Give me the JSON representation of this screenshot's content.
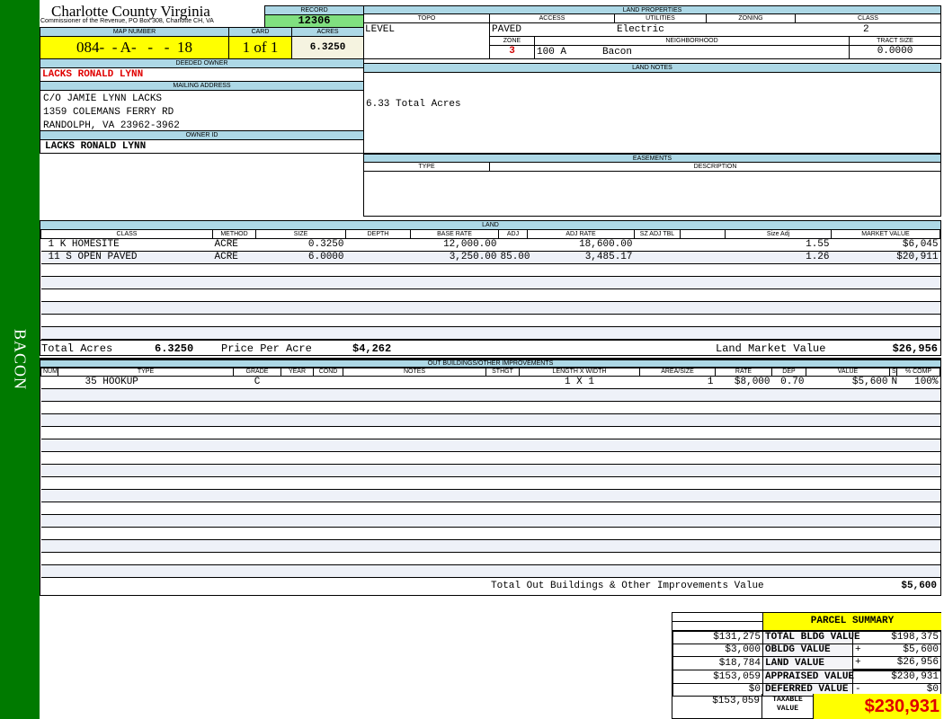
{
  "sidebar": {
    "label": "BACON",
    "color": "#007a00"
  },
  "header": {
    "title": "Charlotte County Virginia",
    "subtitle": "Commissioner of the Revenue, PO Box 308, Charlotte CH, VA"
  },
  "record": {
    "label": "RECORD",
    "value": "12306"
  },
  "map": {
    "label": "MAP NUMBER",
    "value": "084-  - A-   -   -  18",
    "card_label": "CARD",
    "card": "1 of 1",
    "acres_label": "ACRES",
    "acres": "6.3250"
  },
  "owner": {
    "deeded_label": "DEEDED OWNER",
    "deeded": "LACKS RONALD LYNN",
    "mailing_label": "MAILING ADDRESS",
    "mailing": [
      "C/O JAMIE LYNN LACKS",
      "1359 COLEMANS FERRY RD",
      "RANDOLPH, VA 23962-3962"
    ],
    "id_label": "OWNER ID",
    "id": "LACKS RONALD LYNN"
  },
  "land_props": {
    "label": "LAND PROPERTIES",
    "topo_label": "TOPO",
    "topo": "LEVEL",
    "access_label": "ACCESS",
    "access": "PAVED",
    "utilities_label": "UTILITIES",
    "utilities": "Electric",
    "zoning_label": "ZONING",
    "zoning": "",
    "class_label": "CLASS",
    "class": "2",
    "zone_label": "ZONE",
    "zone": "3",
    "neighborhood_label": "NEIGHBORHOOD",
    "neighborhood_code": "100 A",
    "neighborhood": "Bacon",
    "tract_label": "TRACT SIZE",
    "tract": "0.0000"
  },
  "land_notes": {
    "label": "LAND NOTES",
    "text": "6.33 Total Acres"
  },
  "easements": {
    "label": "EASEMENTS",
    "type_label": "TYPE",
    "desc_label": "DESCRIPTION"
  },
  "land": {
    "label": "LAND",
    "columns": [
      "CLASS",
      "METHOD",
      "SIZE",
      "DEPTH",
      "BASE RATE",
      "ADJ",
      "ADJ RATE",
      "SZ ADJ TBL",
      "",
      "Size Adj",
      "MARKET VALUE"
    ],
    "rows": [
      [
        "1 K HOMESITE",
        "ACRE",
        "0.3250",
        "",
        "12,000.00",
        "",
        "18,600.00",
        "",
        "",
        "1.55",
        "$6,045"
      ],
      [
        "11 S OPEN PAVED",
        "ACRE",
        "6.0000",
        "",
        "3,250.00",
        "85.00",
        "3,485.17",
        "",
        "",
        "1.26",
        "$20,911"
      ]
    ],
    "total_acres_label": "Total Acres",
    "total_acres": "6.3250",
    "ppa_label": "Price Per Acre",
    "ppa": "$4,262",
    "lmv_label": "Land Market Value",
    "lmv": "$26,956"
  },
  "outbuildings": {
    "label": "OUT BUILDINGS/OTHER IMPROVEMENTS",
    "columns": [
      "NUM",
      "TYPE",
      "GRADE",
      "YEAR",
      "COND",
      "NOTES",
      "STHGT",
      "LENGTH X WIDTH",
      "AREA/SIZE",
      "RATE",
      "DEP",
      "VALUE",
      "S",
      "% COMP"
    ],
    "rows": [
      [
        "",
        "35 HOOKUP",
        "C",
        "",
        "",
        "",
        "",
        "1 X 1",
        "1",
        "$8,000",
        "0.70",
        "$5,600",
        "N",
        "100%"
      ]
    ],
    "total_label": "Total Out Buildings & Other Improvements Value",
    "total": "$5,600"
  },
  "summary": {
    "title": "PARCEL SUMMARY",
    "rows": [
      {
        "left": "$131,275",
        "label": "TOTAL BLDG VALUE",
        "sign": "",
        "value": "$198,375"
      },
      {
        "left": "$3,000",
        "label": "OBLDG VALUE",
        "sign": "+",
        "value": "$5,600"
      },
      {
        "left": "$18,784",
        "label": "LAND VALUE",
        "sign": "+",
        "value": "$26,956"
      },
      {
        "left": "$153,059",
        "label": "APPRAISED VALUE",
        "sign": "",
        "value": "$230,931"
      },
      {
        "left": "$0",
        "label": "DEFERRED VALUE",
        "sign": "-",
        "value": "$0"
      }
    ],
    "taxable_left": "$153,059",
    "taxable_label": "TAXABLE VALUE",
    "taxable": "$230,931"
  }
}
